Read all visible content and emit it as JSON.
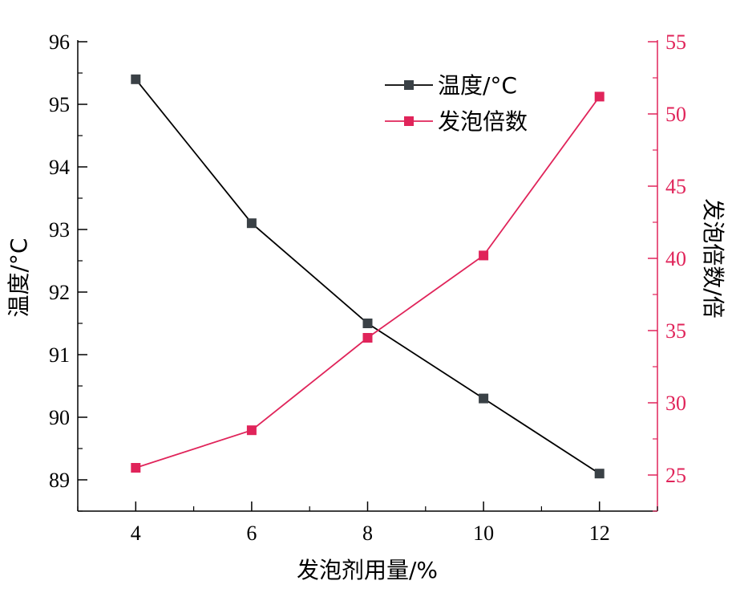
{
  "chart_data": {
    "type": "line",
    "x": [
      4,
      6,
      8,
      10,
      12
    ],
    "xlabel": "发泡剂用量/%",
    "xlim": [
      3,
      13
    ],
    "xticks": [
      4,
      6,
      8,
      10,
      12
    ],
    "ylabel_left": "温度/°C",
    "ylim_left": [
      88.5,
      96
    ],
    "yticks_left": [
      89,
      90,
      91,
      92,
      93,
      94,
      95,
      96
    ],
    "ylabel_right": "发泡倍数/倍",
    "ylim_right": [
      22.5,
      55
    ],
    "yticks_right": [
      25,
      30,
      35,
      40,
      45,
      50,
      55
    ],
    "series": [
      {
        "name": "温度/°C",
        "axis": "left",
        "values": [
          95.4,
          93.1,
          91.5,
          90.3,
          89.1
        ],
        "color": "#000000",
        "marker_color": "#3a4146"
      },
      {
        "name": "发泡倍数",
        "axis": "right",
        "values": [
          25.5,
          28.1,
          34.5,
          40.2,
          51.2
        ],
        "color": "#e0245a",
        "marker_color": "#e0245a"
      }
    ],
    "legend_position": "top-right",
    "grid": false,
    "right_axis_color": "#e0245a"
  }
}
